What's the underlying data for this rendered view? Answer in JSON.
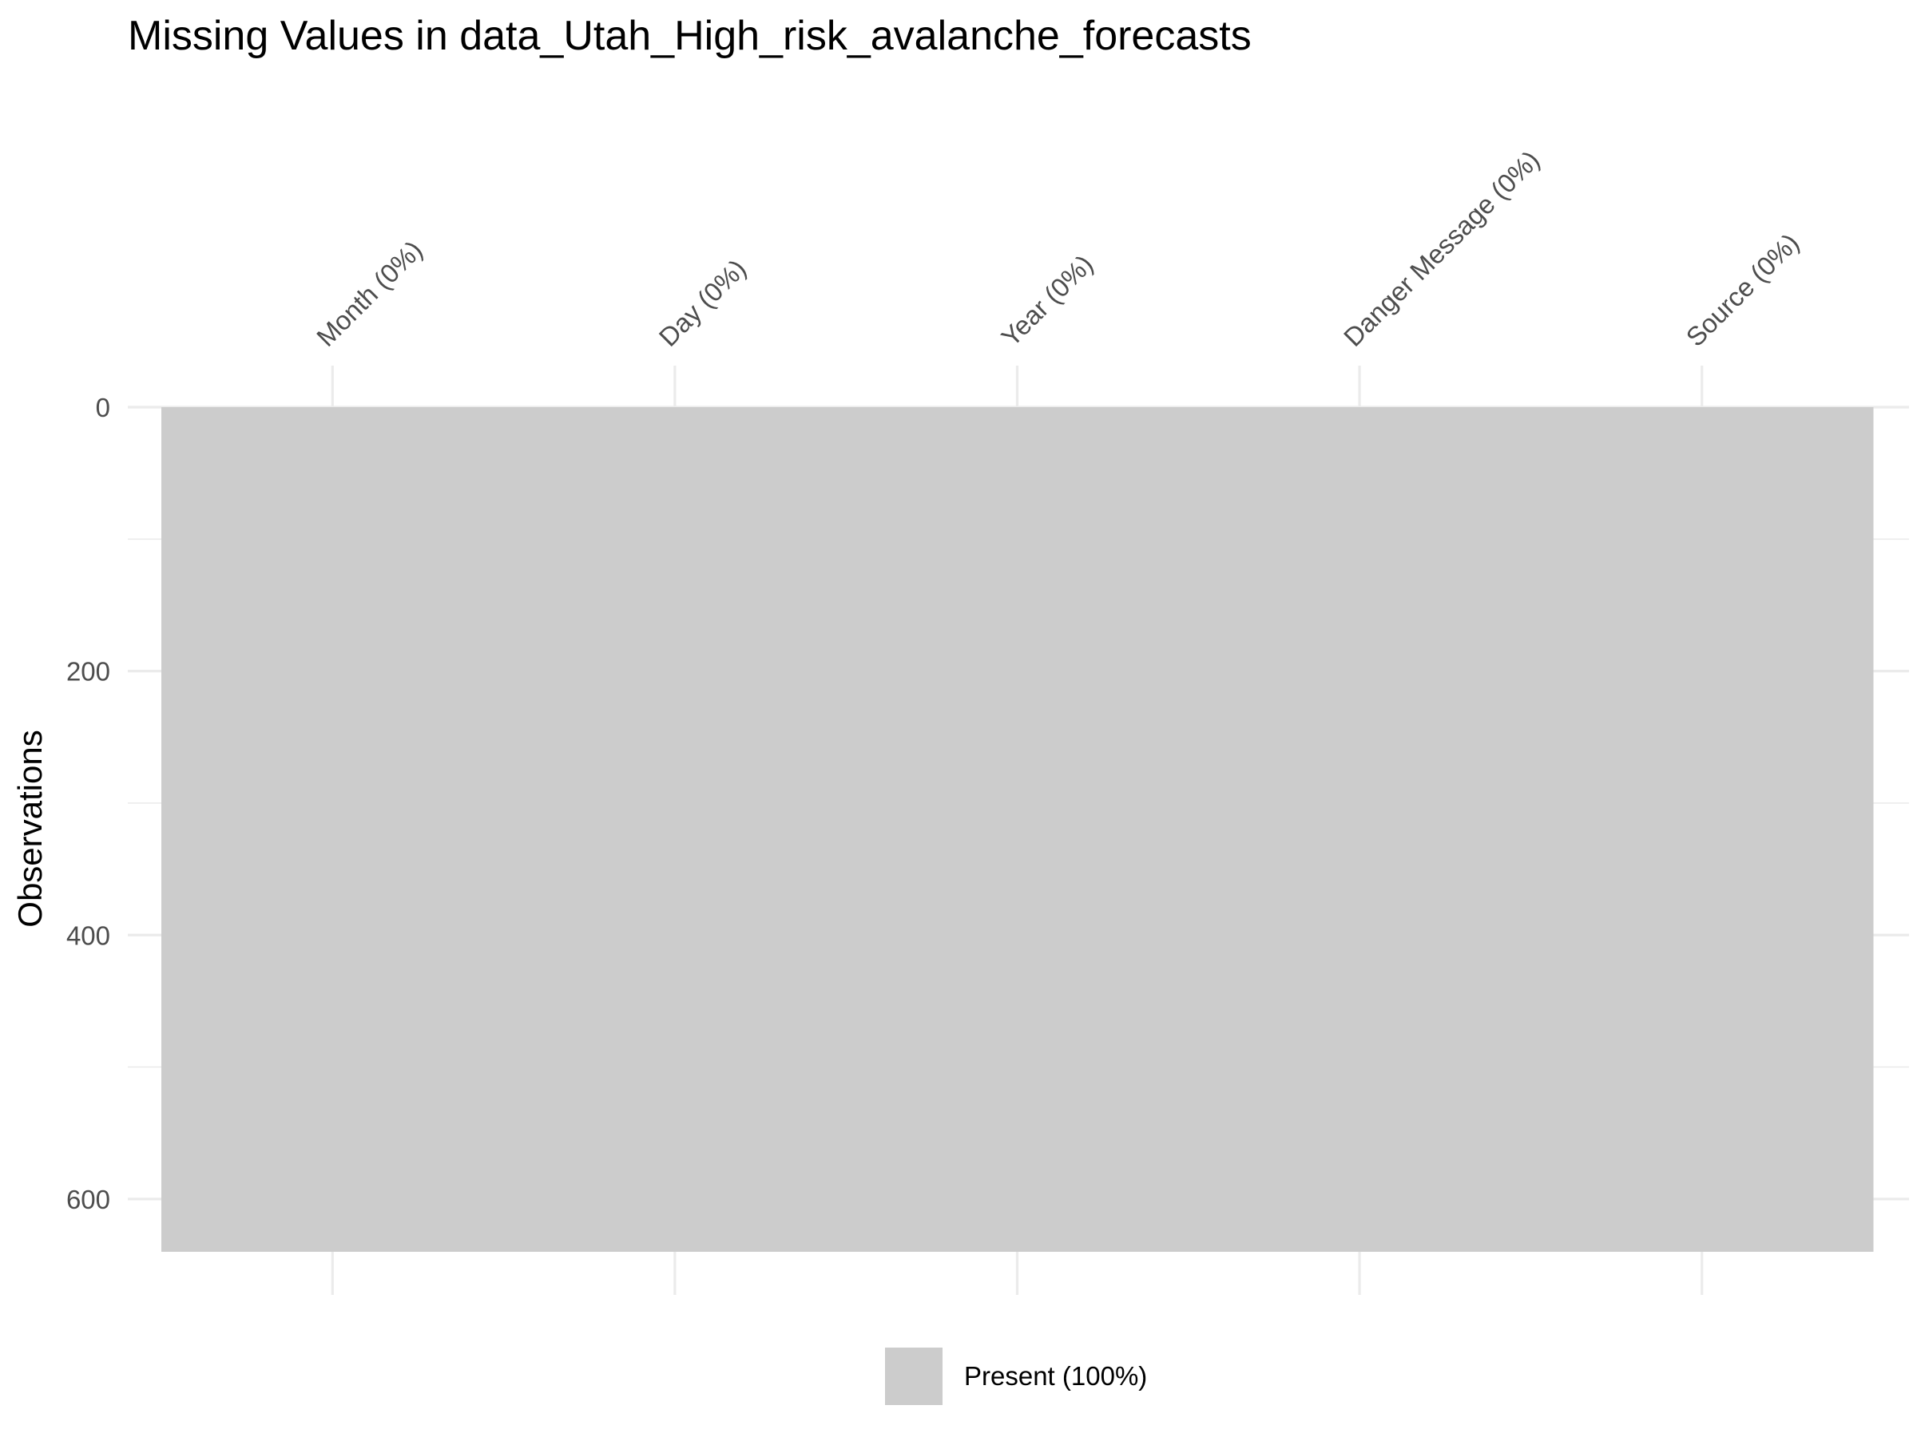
{
  "chart_data": {
    "type": "heatmap",
    "title": "Missing Values in data_Utah_High_risk_avalanche_forecasts",
    "xlabel": "",
    "ylabel": "Observations",
    "columns": [
      "Month (0%)",
      "Day (0%)",
      "Year (0%)",
      "Danger Message (0%)",
      "Source (0%)"
    ],
    "missing_pct": [
      0,
      0,
      0,
      0,
      0
    ],
    "n_observations": 640,
    "ylim": [
      0,
      640
    ],
    "y_ticks": [
      0,
      200,
      400,
      600
    ],
    "y_reversed": true,
    "grid": true,
    "legend": {
      "position": "bottom",
      "entries": [
        {
          "label": "Present (100%)",
          "color": "#cccccc"
        }
      ]
    },
    "colors": {
      "present": "#cccccc"
    }
  }
}
